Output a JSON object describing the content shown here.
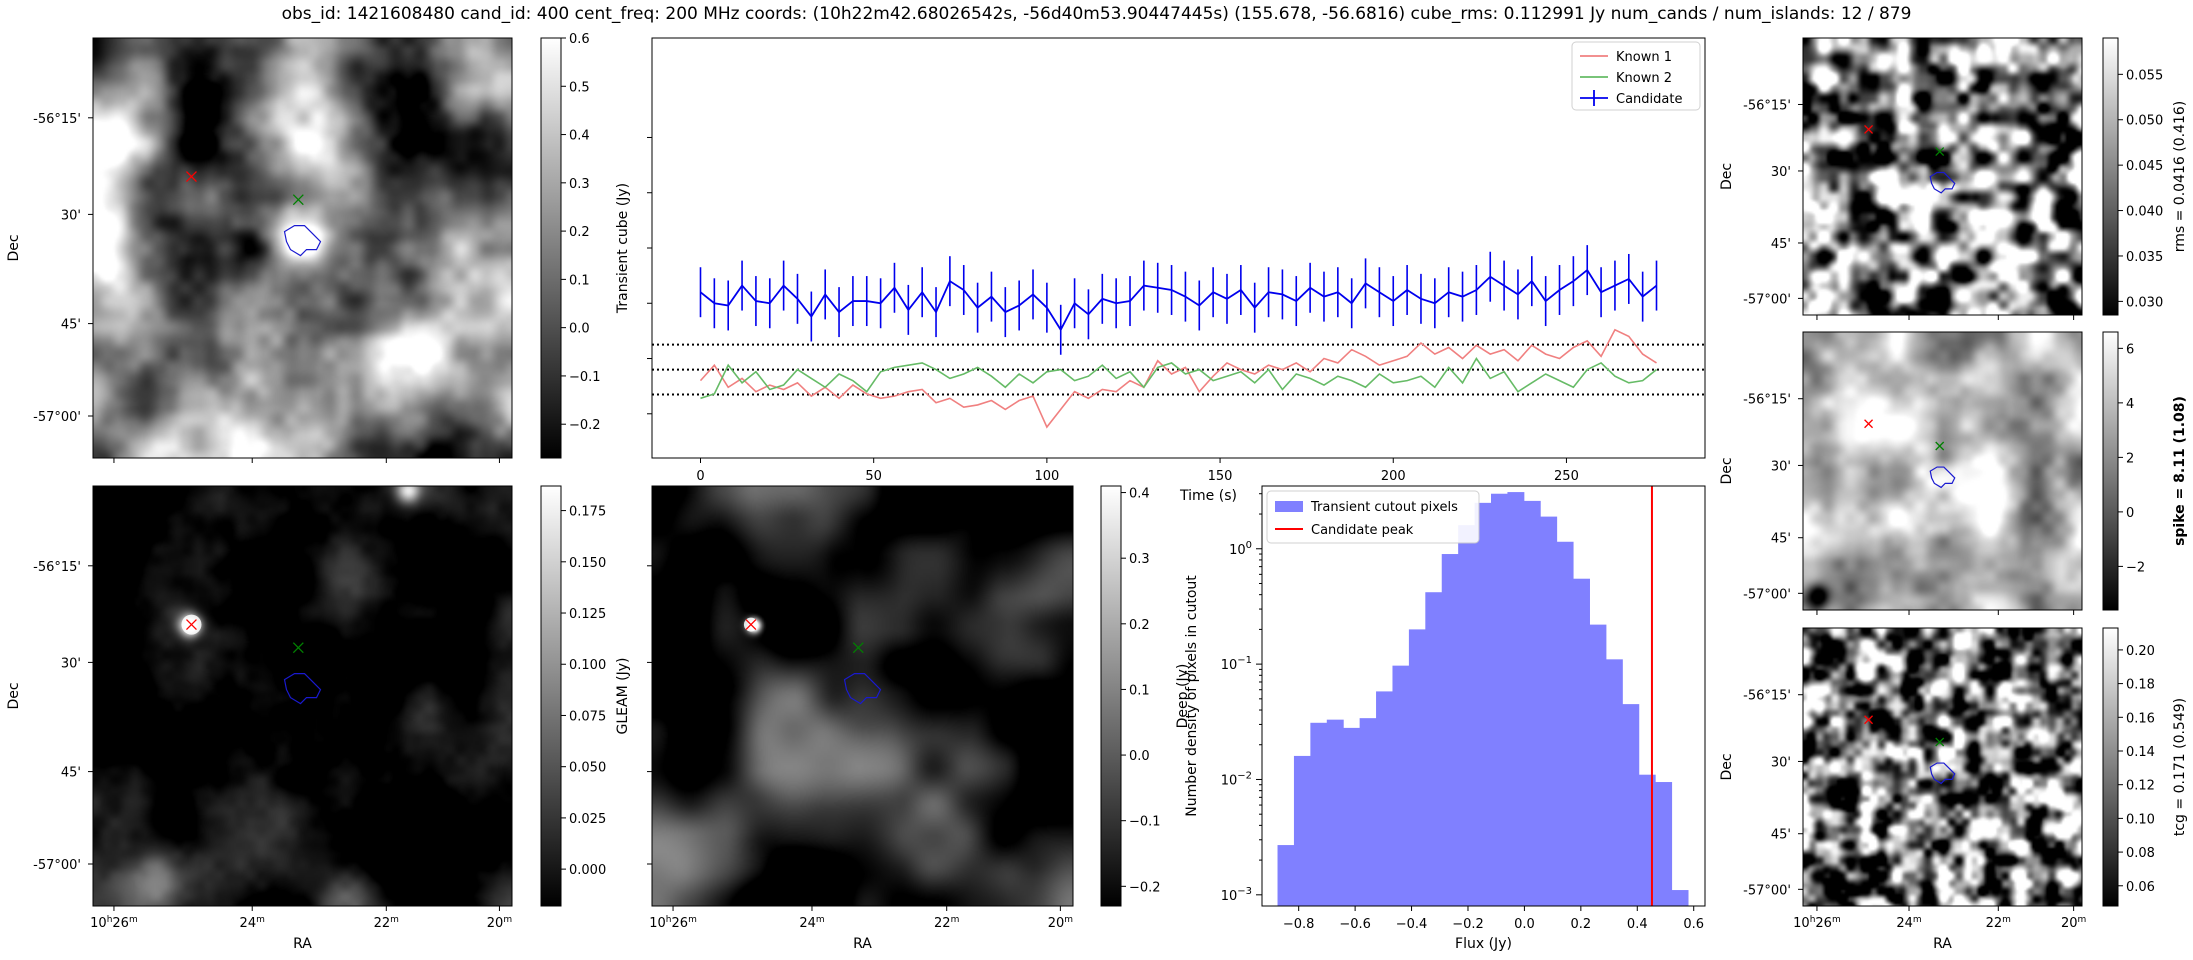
{
  "header": "obs_id: 1421608480 cand_id: 400 cent_freq: 200 MHz coords: (10h22m42.68026542s, -56d40m53.90447445s) (155.678, -56.6816) cube_rms: 0.112991 Jy num_cands / num_islands: 12 / 879",
  "sky_axes": {
    "xlabel": "RA",
    "ylabel": "Dec",
    "ra_ticks": [
      "10h26m",
      "24m",
      "22m",
      "20m"
    ],
    "dec_ticks": [
      "-56°15'",
      "30'",
      "45'",
      "-57°00'"
    ]
  },
  "image_panels": [
    {
      "id": "transient",
      "colorbar_label": "Transient cube (Jy)",
      "ticks": [
        "0.6",
        "0.5",
        "0.4",
        "0.3",
        "0.2",
        "0.1",
        "0.0",
        "−0.1",
        "−0.2"
      ],
      "vmin": -0.27,
      "vmax": 0.6
    },
    {
      "id": "gleam",
      "colorbar_label": "GLEAM (Jy)",
      "ticks": [
        "0.175",
        "0.150",
        "0.125",
        "0.100",
        "0.075",
        "0.050",
        "0.025",
        "0.000"
      ],
      "vmin": -0.018,
      "vmax": 0.187
    },
    {
      "id": "deep",
      "colorbar_label": "Deep (Jy)",
      "ticks": [
        "0.4",
        "0.3",
        "0.2",
        "0.1",
        "0.0",
        "−0.1",
        "−0.2"
      ],
      "vmin": -0.23,
      "vmax": 0.41
    },
    {
      "id": "rms",
      "colorbar_label": "rms = 0.0416 (0.416)",
      "ticks": [
        "0.055",
        "0.050",
        "0.045",
        "0.040",
        "0.035",
        "0.030"
      ],
      "vmin": 0.0285,
      "vmax": 0.059
    },
    {
      "id": "spike",
      "colorbar_label": "spike = 8.11 (1.08)",
      "ticks": [
        "6",
        "4",
        "2",
        "0",
        "−2"
      ],
      "vmin": -3.6,
      "vmax": 6.6
    },
    {
      "id": "tcg",
      "colorbar_label": "tcg = 0.171 (0.549)",
      "ticks": [
        "0.20",
        "0.18",
        "0.16",
        "0.14",
        "0.12",
        "0.10",
        "0.08",
        "0.06"
      ],
      "vmin": 0.048,
      "vmax": 0.213
    }
  ],
  "chart_data": [
    {
      "type": "line",
      "id": "lightcurve",
      "xlabel": "Time (s)",
      "ylabel": "",
      "xlim": [
        -14,
        290
      ],
      "ylim": [
        -0.4,
        1.5
      ],
      "x_ticks": [
        0,
        50,
        100,
        150,
        200,
        250
      ],
      "time": [
        0,
        4,
        8,
        12,
        16,
        20,
        24,
        28,
        32,
        36,
        40,
        44,
        48,
        52,
        56,
        60,
        64,
        68,
        72,
        76,
        80,
        84,
        88,
        92,
        96,
        100,
        104,
        108,
        112,
        116,
        120,
        124,
        128,
        132,
        136,
        140,
        144,
        148,
        152,
        156,
        160,
        164,
        168,
        172,
        176,
        180,
        184,
        188,
        192,
        196,
        200,
        204,
        208,
        212,
        216,
        220,
        224,
        228,
        232,
        236,
        240,
        244,
        248,
        252,
        256,
        260,
        264,
        268,
        272,
        276
      ],
      "hlines": [
        -0.113,
        0.0,
        0.113
      ],
      "series": [
        {
          "name": "Known 1",
          "color": "#f08080",
          "values": [
            -0.05,
            0.02,
            -0.08,
            -0.04,
            -0.1,
            -0.07,
            -0.09,
            -0.06,
            -0.12,
            -0.08,
            -0.13,
            -0.07,
            -0.11,
            -0.13,
            -0.12,
            -0.1,
            -0.09,
            -0.15,
            -0.13,
            -0.17,
            -0.16,
            -0.14,
            -0.18,
            -0.14,
            -0.12,
            -0.26,
            -0.18,
            -0.1,
            -0.13,
            -0.09,
            -0.1,
            -0.05,
            -0.08,
            0.04,
            -0.02,
            0.01,
            -0.1,
            -0.03,
            0.03,
            0.0,
            -0.02,
            0.02,
            0.0,
            0.03,
            -0.01,
            0.05,
            0.03,
            0.09,
            0.06,
            0.02,
            0.04,
            0.06,
            0.12,
            0.07,
            0.1,
            0.05,
            0.11,
            0.07,
            0.09,
            0.04,
            0.11,
            0.07,
            0.05,
            0.1,
            0.13,
            0.06,
            0.18,
            0.15,
            0.07,
            0.03
          ]
        },
        {
          "name": "Known 2",
          "color": "#66bb66",
          "values": [
            -0.13,
            -0.11,
            0.02,
            -0.06,
            -0.01,
            -0.09,
            -0.07,
            0.0,
            -0.04,
            -0.08,
            -0.02,
            -0.05,
            -0.1,
            -0.01,
            0.01,
            0.02,
            0.03,
            0.0,
            -0.04,
            -0.02,
            0.01,
            -0.03,
            -0.08,
            -0.02,
            -0.06,
            -0.01,
            0.0,
            -0.05,
            -0.03,
            0.02,
            -0.04,
            -0.01,
            -0.08,
            0.01,
            0.03,
            -0.02,
            0.0,
            -0.05,
            -0.03,
            -0.01,
            -0.06,
            0.0,
            -0.09,
            -0.02,
            -0.04,
            -0.07,
            -0.03,
            -0.05,
            -0.08,
            -0.02,
            -0.06,
            -0.05,
            -0.03,
            -0.08,
            0.01,
            -0.06,
            0.05,
            -0.04,
            -0.01,
            -0.1,
            -0.06,
            -0.02,
            -0.05,
            -0.08,
            0.0,
            0.03,
            -0.03,
            -0.06,
            -0.05,
            0.0
          ]
        },
        {
          "name": "Candidate",
          "color": "#0000ee",
          "yerr": 0.113,
          "values": [
            0.35,
            0.3,
            0.29,
            0.38,
            0.31,
            0.3,
            0.38,
            0.32,
            0.24,
            0.34,
            0.26,
            0.31,
            0.31,
            0.3,
            0.37,
            0.27,
            0.35,
            0.26,
            0.4,
            0.36,
            0.28,
            0.33,
            0.26,
            0.29,
            0.34,
            0.28,
            0.18,
            0.3,
            0.25,
            0.32,
            0.3,
            0.31,
            0.38,
            0.37,
            0.36,
            0.33,
            0.29,
            0.35,
            0.32,
            0.36,
            0.28,
            0.35,
            0.34,
            0.31,
            0.37,
            0.33,
            0.35,
            0.3,
            0.39,
            0.35,
            0.31,
            0.36,
            0.32,
            0.3,
            0.35,
            0.33,
            0.36,
            0.42,
            0.38,
            0.34,
            0.4,
            0.31,
            0.36,
            0.4,
            0.45,
            0.35,
            0.38,
            0.41,
            0.33,
            0.38
          ]
        }
      ]
    },
    {
      "type": "bar",
      "id": "histogram",
      "xlabel": "Flux (Jy)",
      "ylabel": "Number density of pixels in cutout",
      "xscale": "linear",
      "yscale": "log",
      "xlim": [
        -0.93,
        0.64
      ],
      "ylim": [
        0.0008,
        3.5
      ],
      "x_ticks": [
        "−0.8",
        "−0.6",
        "−0.4",
        "−0.2",
        "0.0",
        "0.2",
        "0.4",
        "0.6"
      ],
      "y_tick_labels": [
        "10⁰",
        "10⁻¹",
        "10⁻²",
        "10⁻³"
      ],
      "bin_edges": [
        -0.875,
        -0.8168,
        -0.7586,
        -0.7004,
        -0.6422,
        -0.584,
        -0.5258,
        -0.4676,
        -0.4094,
        -0.3512,
        -0.293,
        -0.2348,
        -0.1766,
        -0.1184,
        -0.0602,
        -0.002,
        0.056,
        0.1142,
        0.1724,
        0.2306,
        0.2888,
        0.347,
        0.4052,
        0.4634,
        0.5216,
        0.5798
      ],
      "values": [
        0.0027,
        0.016,
        0.031,
        0.033,
        0.028,
        0.034,
        0.058,
        0.097,
        0.2,
        0.42,
        0.9,
        1.6,
        2.5,
        3.0,
        3.1,
        2.6,
        1.9,
        1.15,
        0.55,
        0.22,
        0.11,
        0.045,
        0.011,
        0.0095,
        0.0011
      ],
      "candidate_peak": 0.452,
      "legend": [
        "Transient cutout pixels",
        "Candidate peak"
      ]
    }
  ]
}
